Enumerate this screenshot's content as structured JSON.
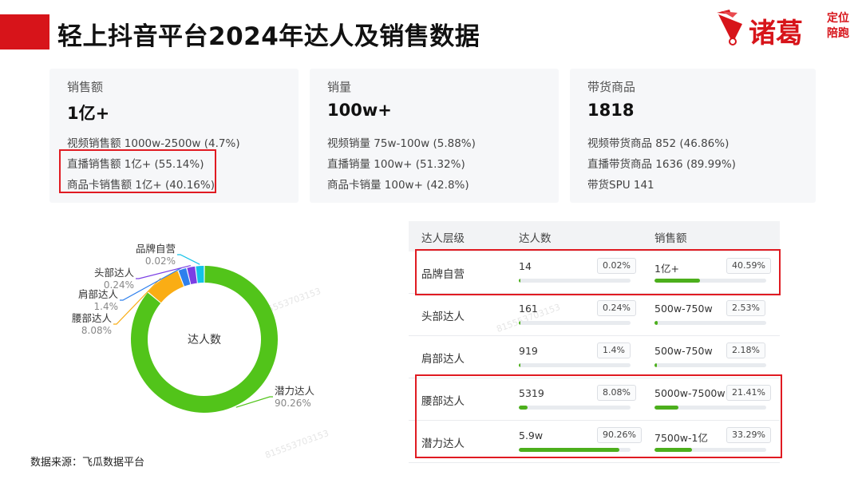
{
  "header": {
    "title": "轻上抖音平台2024年达人及销售数据",
    "logo_main": "诸葛",
    "logo_sub_1": "定位",
    "logo_sub_2": "陪跑"
  },
  "stats": [
    {
      "label": "销售额",
      "value": "1亿+",
      "lines": [
        "视频销售额 1000w-2500w (4.7%)",
        "直播销售额 1亿+ (55.14%)",
        "商品卡销售额 1亿+ (40.16%)"
      ]
    },
    {
      "label": "销量",
      "value": "100w+",
      "lines": [
        "视频销量 75w-100w (5.88%)",
        "直播销量 100w+ (51.32%)",
        "商品卡销量 100w+ (42.8%)"
      ]
    },
    {
      "label": "带货商品",
      "value": "1818",
      "lines": [
        "视频带货商品 852 (46.86%)",
        "直播带货商品 1636 (89.99%)",
        "带货SPU 141"
      ]
    }
  ],
  "chart_data": {
    "type": "pie",
    "donut": true,
    "center_label": "达人数",
    "slices": [
      {
        "name": "潜力达人",
        "pct_label": "90.26%",
        "value": 90.26,
        "color": "#52c41a"
      },
      {
        "name": "腰部达人",
        "pct_label": "8.08%",
        "value": 8.08,
        "color": "#faad14"
      },
      {
        "name": "肩部达人",
        "pct_label": "1.4%",
        "value": 1.4,
        "color": "#2f80ed"
      },
      {
        "name": "头部达人",
        "pct_label": "0.24%",
        "value": 0.24,
        "color": "#7b3fe4"
      },
      {
        "name": "品牌自营",
        "pct_label": "0.02%",
        "value": 0.02,
        "color": "#13c2e8"
      }
    ]
  },
  "table": {
    "headers": [
      "达人层级",
      "达人数",
      "销售额"
    ],
    "rows": [
      {
        "name": "品牌自营",
        "count": "14",
        "count_pct": "0.02%",
        "count_fill": 0.02,
        "sales": "1亿+",
        "sales_pct": "40.59%",
        "sales_fill": 40.59
      },
      {
        "name": "头部达人",
        "count": "161",
        "count_pct": "0.24%",
        "count_fill": 0.24,
        "sales": "500w-750w",
        "sales_pct": "2.53%",
        "sales_fill": 2.53
      },
      {
        "name": "肩部达人",
        "count": "919",
        "count_pct": "1.4%",
        "count_fill": 1.4,
        "sales": "500w-750w",
        "sales_pct": "2.18%",
        "sales_fill": 2.18
      },
      {
        "name": "腰部达人",
        "count": "5319",
        "count_pct": "8.08%",
        "count_fill": 8.08,
        "sales": "5000w-7500w",
        "sales_pct": "21.41%",
        "sales_fill": 21.41
      },
      {
        "name": "潜力达人",
        "count": "5.9w",
        "count_pct": "90.26%",
        "count_fill": 90.26,
        "sales": "7500w-1亿",
        "sales_pct": "33.29%",
        "sales_fill": 33.29
      }
    ]
  },
  "footer": {
    "source": "数据来源：飞瓜数据平台"
  },
  "watermark_text": "815553703153"
}
